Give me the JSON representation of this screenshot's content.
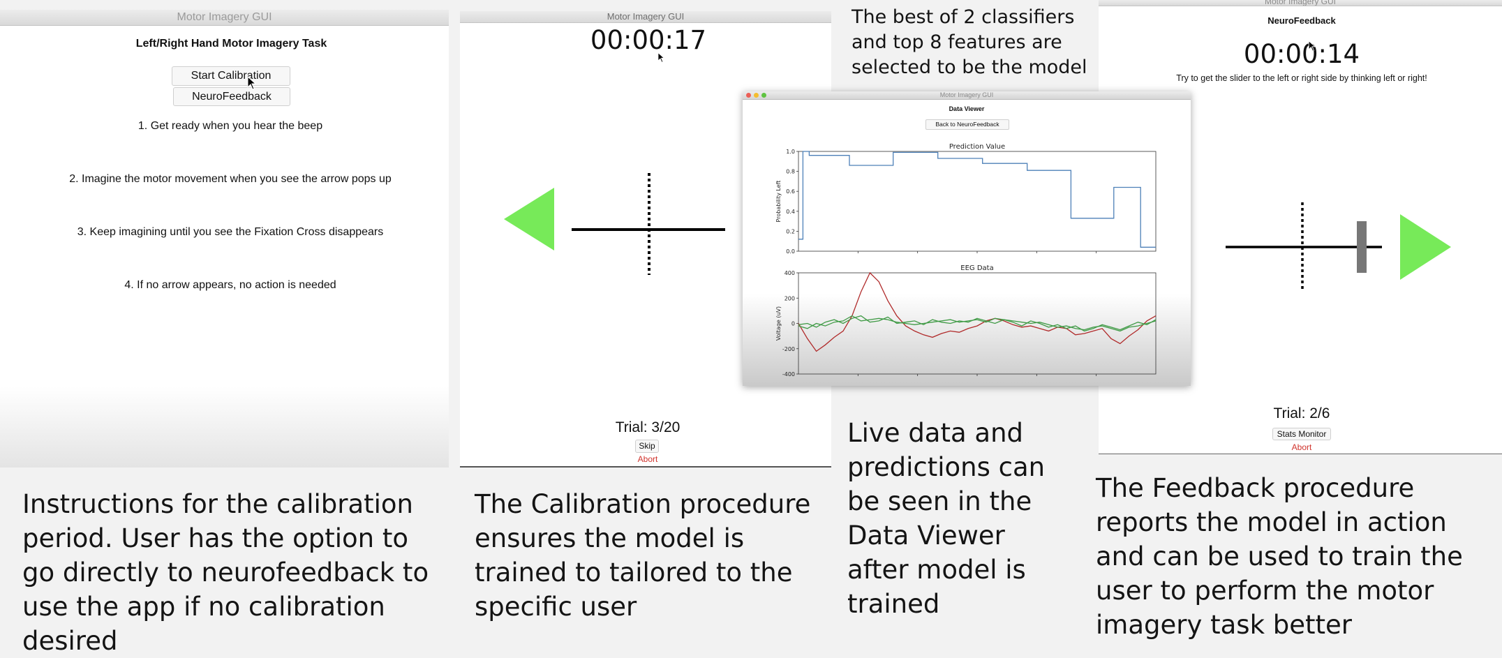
{
  "panel1": {
    "window_title": "Motor Imagery GUI",
    "heading": "Left/Right Hand Motor Imagery Task",
    "start_calibration_label": "Start Calibration",
    "neurofeedback_label": "NeuroFeedback",
    "instructions": [
      "1. Get ready when you hear the beep",
      "2. Imagine the motor movement when you see the arrow pops up",
      "3. Keep imagining until you see the Fixation Cross disappears",
      "4. If no arrow appears, no action is needed"
    ],
    "caption": "Instructions for the calibration period. User has the option to go directly to neurofeedback to use the app if no calibration desired"
  },
  "panel2": {
    "window_title": "Motor Imagery GUI",
    "timer": "00:00:17",
    "trial": "Trial: 3/20",
    "skip_label": "Skip",
    "abort_label": "Abort",
    "caption": "The Calibration procedure ensures the model is trained to tailored to the specific user"
  },
  "panel3": {
    "note": "The best of 2 classifiers and top 8 features are selected to be the model",
    "window_title": "Motor Imagery GUI",
    "heading": "Data Viewer",
    "back_label": "Back to NeuroFeedback",
    "caption": "Live data and predictions can be seen in the Data Viewer after model is trained"
  },
  "panel4": {
    "window_title": "Motor Imagery GUI",
    "heading": "NeuroFeedback",
    "timer": "00:00:14",
    "hint": "Try to get the slider to the left or right side by thinking left or right!",
    "trial": "Trial: 2/6",
    "stats_label": "Stats Monitor",
    "abort_label": "Abort",
    "slider_level": 0.87,
    "caption": "The Feedback procedure reports the model in action and can be used to train the user to perform the motor imagery task better"
  },
  "colors": {
    "arrow": "#77ea59",
    "line_blue": "#4d80b8",
    "eeg_red": "#b02a2a",
    "eeg_green": "#3f9a45",
    "abort": "#d0322b"
  },
  "chart_data": [
    {
      "type": "line",
      "title": "Prediction Value",
      "ylabel": "Probability Left",
      "xlabel": "",
      "ylim": [
        0.0,
        1.0
      ],
      "yticks": [
        "0.0",
        "0.2",
        "0.4",
        "0.6",
        "0.8",
        "1.0"
      ],
      "series": [
        {
          "x": [
            0,
            0.5,
            0.5,
            1.2,
            1.2,
            5.7,
            5.7,
            10.6,
            10.6,
            15.6,
            15.6,
            20.6,
            20.6,
            25.6,
            25.6,
            30.5,
            30.5,
            35.3,
            35.3,
            38.3,
            38.3,
            40.0
          ],
          "values": [
            0.12,
            0.12,
            1.0,
            1.0,
            0.96,
            0.96,
            0.86,
            0.86,
            0.99,
            0.99,
            0.93,
            0.93,
            0.88,
            0.88,
            0.81,
            0.81,
            0.33,
            0.33,
            0.64,
            0.64,
            0.04,
            0.04
          ]
        }
      ],
      "grid": false
    },
    {
      "type": "line",
      "title": "EEG Data",
      "ylabel": "Voltage (uV)",
      "xlabel": "",
      "ylim": [
        -400,
        400
      ],
      "yticks": [
        "-400",
        "-200",
        "0",
        "200",
        "400"
      ],
      "series": [
        {
          "values": [
            0,
            -120,
            -220,
            -170,
            -110,
            -60,
            60,
            250,
            400,
            330,
            180,
            60,
            -20,
            -60,
            -90,
            -110,
            -80,
            -60,
            -70,
            -40,
            -20,
            20,
            40,
            20,
            -10,
            -30,
            -20,
            -40,
            -60,
            -30,
            -40,
            -90,
            -80,
            -60,
            -40,
            -120,
            -160,
            -100,
            -50,
            20,
            60
          ]
        },
        {
          "values": [
            -20,
            -40,
            0,
            -20,
            10,
            20,
            60,
            20,
            30,
            40,
            30,
            10,
            0,
            -10,
            0,
            10,
            20,
            30,
            10,
            20,
            30,
            10,
            40,
            30,
            20,
            10,
            0,
            10,
            -10,
            -30,
            -20,
            -40,
            -50,
            -30,
            -20,
            -40,
            -60,
            -30,
            -20,
            0,
            20
          ]
        },
        {
          "values": [
            -10,
            0,
            -30,
            10,
            30,
            0,
            40,
            60,
            10,
            20,
            50,
            0,
            10,
            20,
            -10,
            30,
            10,
            0,
            20,
            10,
            40,
            20,
            0,
            30,
            10,
            -20,
            20,
            0,
            -30,
            -10,
            -40,
            -20,
            -60,
            -40,
            -10,
            -30,
            -50,
            -20,
            10,
            -10,
            30
          ]
        }
      ]
    }
  ]
}
